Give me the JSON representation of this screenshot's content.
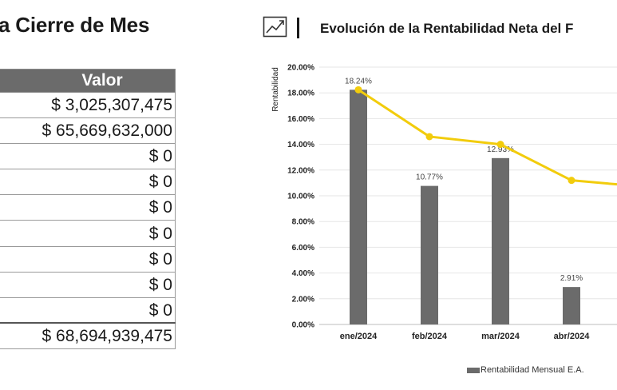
{
  "table": {
    "title": "a Cierre de Mes",
    "header": "Valor",
    "values": [
      "$ 3,025,307,475",
      "$ 65,669,632,000",
      "$ 0",
      "$ 0",
      "$ 0",
      "$ 0",
      "$ 0",
      "$ 0",
      "$ 0"
    ],
    "total": "$ 68,694,939,475"
  },
  "header": {
    "icon": "trend-chart-icon",
    "title": "Evolución de la Rentabilidad Neta del F"
  },
  "colors": {
    "bar": "#6b6b6b",
    "line": "#f2cc0c",
    "header_bg": "#6b6b6b"
  },
  "chart_data": {
    "type": "bar",
    "ylabel": "Rentabilidad",
    "ylim": [
      0,
      20
    ],
    "yticks": [
      "0.00%",
      "2.00%",
      "4.00%",
      "6.00%",
      "8.00%",
      "10.00%",
      "12.00%",
      "14.00%",
      "16.00%",
      "18.00%",
      "20.00%"
    ],
    "categories": [
      "ene/2024",
      "feb/2024",
      "mar/2024",
      "abr/2024"
    ],
    "series": [
      {
        "name": "Rentabilidad Mensual E.A.",
        "type": "bar",
        "values": [
          18.24,
          10.77,
          12.93,
          2.91
        ],
        "labels": [
          "18.24%",
          "10.77%",
          "12.93%",
          "2.91%"
        ]
      },
      {
        "type": "line",
        "values": [
          18.24,
          14.6,
          14.0,
          11.2
        ]
      }
    ],
    "grid": true,
    "legend_position": "bottom-right"
  }
}
